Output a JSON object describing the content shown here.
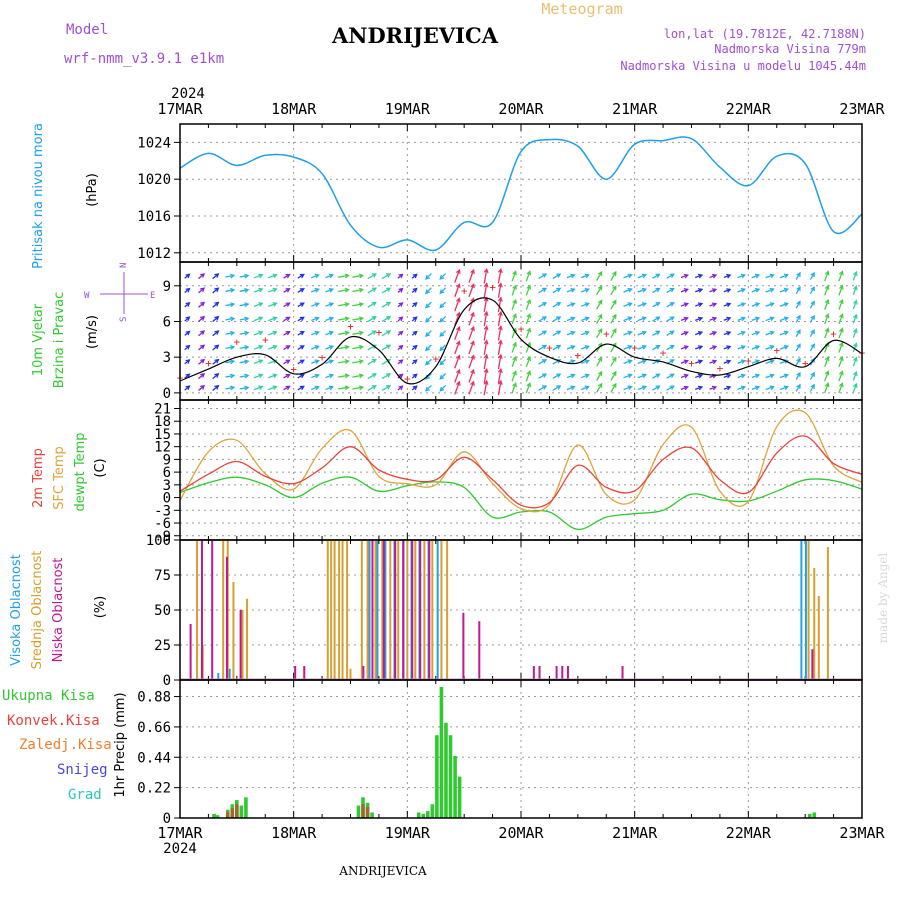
{
  "header": {
    "model_label": "Model",
    "model_name": "wrf-nmm_v3.9.1  e1km",
    "station": "ANDRIJEVICA",
    "meteogram_label": "Meteogram",
    "lonlat": "lon,lat (19.7812E, 42.7188N)",
    "elevation": "Nadmorska Visina 779m",
    "model_elevation": "Nadmorska Visina u modelu 1045.44m"
  },
  "footer": {
    "station": "ANDRIJEVICA",
    "credit": "made by Angel"
  },
  "colors": {
    "pressure": "#1ea0e6",
    "temp2m": "#e8433a",
    "sfc_temp": "#e0a43c",
    "dewpt": "#32c832",
    "high_cloud": "#20a0e8",
    "mid_cloud": "#d4a030",
    "low_cloud": "#c01890",
    "total_precip": "#32c832",
    "conv_precip": "#e8433a",
    "frz_precip": "#f08030",
    "snow": "#4848e0",
    "hail": "#28c8b8",
    "wind_speed_line": "#000000",
    "wind_gust_marks": "#e82020",
    "grid": "#999999"
  },
  "chart_data": [
    {
      "id": "pressure",
      "type": "line",
      "labels": [
        "Pritisak na nivou mora",
        "(hPa)"
      ],
      "ylim": [
        1011,
        1026
      ],
      "yticks": [
        1012,
        1016,
        1020,
        1024
      ],
      "grid": true,
      "series": [
        {
          "x": [
            0,
            0.25,
            0.5,
            0.75,
            1,
            1.25,
            1.5,
            1.75,
            2,
            2.25,
            2.5,
            2.75,
            3,
            3.25,
            3.5,
            3.75,
            4,
            4.25,
            4.5,
            4.75,
            5,
            5.25,
            5.5,
            5.75,
            6
          ],
          "values": [
            1021.2,
            1022.8,
            1021.5,
            1022.6,
            1022.4,
            1020.6,
            1015.0,
            1012.6,
            1013.4,
            1012.3,
            1015.3,
            1015.3,
            1023.0,
            1024.3,
            1023.6,
            1020.0,
            1023.8,
            1024.2,
            1024.4,
            1021.3,
            1019.3,
            1022.5,
            1021.7,
            1014.3,
            1016.2
          ]
        }
      ]
    },
    {
      "id": "wind",
      "type": "line",
      "labels": [
        "10m Vjetar",
        "Brzina i Pravac",
        "(m/s)"
      ],
      "compass": [
        "N",
        "S",
        "W",
        "E"
      ],
      "ylim": [
        -0.6,
        11.0
      ],
      "yticks": [
        0,
        3,
        6,
        9
      ],
      "grid": true,
      "series": [
        {
          "name": "speed",
          "x": [
            0,
            0.25,
            0.5,
            0.75,
            1,
            1.25,
            1.5,
            1.75,
            2,
            2.25,
            2.5,
            2.75,
            3,
            3.25,
            3.5,
            3.75,
            4,
            4.25,
            4.5,
            4.75,
            5,
            5.25,
            5.5,
            5.75,
            6
          ],
          "values": [
            1.0,
            2.0,
            3.0,
            3.2,
            1.6,
            2.4,
            4.7,
            3.6,
            0.8,
            2.2,
            7.0,
            7.8,
            4.5,
            3.0,
            2.5,
            4.1,
            3.0,
            2.6,
            1.8,
            1.5,
            2.2,
            2.9,
            2.2,
            4.4,
            3.3
          ]
        },
        {
          "name": "gust",
          "x": [
            0,
            0.25,
            0.5,
            0.75,
            1,
            1.25,
            1.5,
            1.75,
            2,
            2.25,
            2.5,
            2.75,
            3,
            3.25,
            3.5,
            3.75,
            4,
            4.25,
            4.5,
            4.75,
            5,
            5.25,
            5.5,
            5.75,
            6
          ],
          "values": [
            1.3,
            2.5,
            4.3,
            4.5,
            2.0,
            3.0,
            5.6,
            5.1,
            1.2,
            2.9,
            8.6,
            8.9,
            5.4,
            3.8,
            3.2,
            5.0,
            3.8,
            3.4,
            2.5,
            2.1,
            2.7,
            3.6,
            2.5,
            5.0,
            3.4
          ]
        }
      ],
      "directions_deg": [
        230,
        230,
        260,
        250,
        240,
        250,
        260,
        240,
        230,
        45,
        200,
        190,
        200,
        240,
        250,
        210,
        250,
        240,
        250,
        250,
        250,
        250,
        210,
        200,
        200
      ]
    },
    {
      "id": "temperature",
      "type": "line",
      "labels": [
        "2m Temp",
        "SFC Temp",
        "dewpt Temp",
        "(C)"
      ],
      "ylim": [
        -10,
        23
      ],
      "yticks": [
        -9,
        -6,
        -3,
        0,
        3,
        6,
        9,
        12,
        15,
        18,
        21
      ],
      "grid": true,
      "series": [
        {
          "name": "2m Temp",
          "x": [
            0,
            0.25,
            0.5,
            0.75,
            1,
            1.25,
            1.5,
            1.75,
            2,
            2.25,
            2.5,
            2.75,
            3,
            3.25,
            3.5,
            3.75,
            4,
            4.25,
            4.5,
            4.75,
            5,
            5.25,
            5.5,
            5.75,
            6
          ],
          "values": [
            1.5,
            5.5,
            8.5,
            5.0,
            3.3,
            7.0,
            12.0,
            6.5,
            4.3,
            4.2,
            9.5,
            4.2,
            -1.8,
            -1.2,
            7.6,
            2.4,
            1.6,
            9.0,
            11.7,
            4.2,
            1.2,
            10.5,
            14.5,
            8.0,
            5.5
          ]
        },
        {
          "name": "SFC Temp",
          "x": [
            0,
            0.25,
            0.5,
            0.75,
            1,
            1.25,
            1.5,
            1.75,
            2,
            2.25,
            2.5,
            2.75,
            3,
            3.25,
            3.5,
            3.75,
            4,
            4.25,
            4.5,
            4.75,
            5,
            5.25,
            5.5,
            5.75,
            6
          ],
          "values": [
            -0.7,
            10.8,
            13.5,
            5.6,
            2.0,
            11.6,
            15.8,
            5.0,
            3.3,
            3.0,
            10.8,
            3.3,
            -2.6,
            -1.6,
            12.4,
            0.7,
            -0.5,
            12.5,
            16.6,
            1.5,
            -0.9,
            16.7,
            20.0,
            7.5,
            3.6
          ]
        },
        {
          "name": "dewpt Temp",
          "x": [
            0,
            0.25,
            0.5,
            0.75,
            1,
            1.25,
            1.5,
            1.75,
            2,
            2.25,
            2.5,
            2.75,
            3,
            3.25,
            3.5,
            3.75,
            4,
            4.25,
            4.5,
            4.75,
            5,
            5.25,
            5.5,
            5.75,
            6
          ],
          "values": [
            1.2,
            3.5,
            4.8,
            3.0,
            0.0,
            3.4,
            4.8,
            1.5,
            2.8,
            3.7,
            2.4,
            -4.6,
            -3.4,
            -3.4,
            -7.5,
            -4.6,
            -3.8,
            -3.0,
            0.8,
            -0.5,
            -0.8,
            1.5,
            4.2,
            4.0,
            2.0
          ]
        }
      ]
    },
    {
      "id": "clouds",
      "type": "bar",
      "labels": [
        "Visoka Oblacnost",
        "Srednja Oblacnost",
        "Niska Oblacnost",
        "(%)"
      ],
      "ylim": [
        0,
        100
      ],
      "yticks": [
        0,
        25,
        50,
        75,
        100
      ],
      "grid": true,
      "series": [
        {
          "name": "Visoka Oblacnost",
          "x": [
            0.35,
            0.45,
            1.68,
            1.75,
            1.82,
            1.9,
            1.98,
            2.05,
            2.12,
            2.2,
            2.28,
            5.48,
            5.52
          ],
          "values": [
            5,
            8,
            100,
            100,
            100,
            100,
            100,
            100,
            100,
            100,
            100,
            100,
            100
          ]
        },
        {
          "name": "Srednja Oblacnost",
          "x": [
            0.15,
            0.2,
            0.38,
            0.42,
            0.47,
            0.55,
            0.59,
            1.3,
            1.33,
            1.36,
            1.4,
            1.43,
            1.47,
            1.5,
            1.6,
            1.65,
            1.72,
            1.78,
            1.85,
            1.92,
            2.0,
            2.07,
            2.15,
            2.22,
            2.3,
            2.35,
            5.53,
            5.58,
            5.62,
            5.7
          ],
          "values": [
            100,
            25,
            100,
            100,
            70,
            50,
            58,
            100,
            100,
            100,
            100,
            100,
            100,
            8,
            100,
            100,
            100,
            100,
            100,
            100,
            100,
            100,
            100,
            100,
            100,
            100,
            100,
            80,
            60,
            95
          ]
        },
        {
          "name": "Niska Oblacnost",
          "x": [
            0.08,
            0.18,
            0.27,
            0.4,
            0.52,
            1.0,
            1.08,
            1.6,
            1.68,
            1.78,
            1.88,
            1.95,
            2.03,
            2.1,
            2.18,
            2.48,
            2.62,
            3.1,
            3.15,
            3.3,
            3.35,
            3.4,
            3.88,
            5.55
          ],
          "values": [
            40,
            100,
            100,
            88,
            50,
            10,
            10,
            10,
            100,
            100,
            100,
            100,
            100,
            100,
            100,
            48,
            42,
            10,
            10,
            10,
            10,
            10,
            10,
            22
          ]
        }
      ]
    },
    {
      "id": "precipitation",
      "type": "bar",
      "labels": [
        "Ukupna Kisa",
        "Konvek.Kisa",
        "Zaledj.Kisa",
        "Snijeg",
        "Grad",
        "1hr Precip (mm)"
      ],
      "ylim": [
        0,
        1.0
      ],
      "yticks": [
        0,
        0.22,
        0.44,
        0.66,
        0.88
      ],
      "grid": true,
      "series": [
        {
          "name": "Ukupna Kisa",
          "x": [
            0.3,
            0.33,
            0.42,
            0.46,
            0.5,
            0.54,
            0.58,
            1.57,
            1.61,
            1.65,
            1.69,
            2.1,
            2.14,
            2.18,
            2.22,
            2.26,
            2.3,
            2.34,
            2.38,
            2.42,
            2.46,
            5.54,
            5.58
          ],
          "values": [
            0.03,
            0.02,
            0.06,
            0.1,
            0.13,
            0.09,
            0.15,
            0.09,
            0.15,
            0.11,
            0.04,
            0.04,
            0.03,
            0.05,
            0.1,
            0.6,
            0.95,
            0.69,
            0.6,
            0.45,
            0.3,
            0.03,
            0.04
          ]
        },
        {
          "name": "Konvek.Kisa",
          "x": [
            0.42,
            0.46,
            0.5,
            1.61,
            1.65
          ],
          "values": [
            0.04,
            0.07,
            0.1,
            0.1,
            0.08
          ]
        }
      ]
    }
  ],
  "time_axis": {
    "year": "2024",
    "labels": [
      "17MAR",
      "18MAR",
      "19MAR",
      "20MAR",
      "21MAR",
      "22MAR",
      "23MAR"
    ]
  }
}
